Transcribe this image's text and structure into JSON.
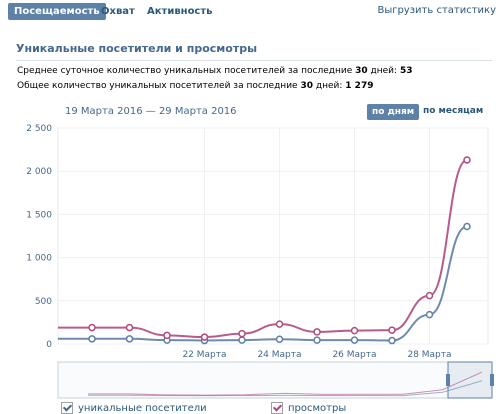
{
  "tabs": {
    "items": [
      {
        "label": "Посещаемость",
        "active": true
      },
      {
        "label": "Охват",
        "active": false
      },
      {
        "label": "Активность",
        "active": false
      }
    ],
    "export_label": "Выгрузить статистику"
  },
  "section": {
    "title": "Уникальные посетители и просмотры",
    "avg_prefix": "Среднее суточное количество уникальных посетителей за последние",
    "avg_days": "30",
    "avg_mid": "дней:",
    "avg_value": "53",
    "total_prefix": "Общее количество уникальных посетителей за последние",
    "total_days": "30",
    "total_mid": "дней:",
    "total_value": "1 279"
  },
  "controls": {
    "date_range": "19 Марта 2016 — 29 Марта 2016",
    "by_days": "по дням",
    "by_months": "по месяцам"
  },
  "legend": {
    "visitors": "уникальные посетители",
    "views": "просмотры"
  },
  "colors": {
    "visitors": "#5e7ea6",
    "views": "#b0487e",
    "accent": "#5e81a8",
    "link": "#2b587a"
  },
  "chart_data": {
    "type": "line",
    "x": [
      "19 Марта",
      "20 Марта",
      "21 Марта",
      "22 Марта",
      "23 Марта",
      "24 Марта",
      "25 Марта",
      "26 Марта",
      "27 Марта",
      "28 Марта",
      "29 Марта"
    ],
    "x_tick_labels": [
      "22 Марта",
      "24 Марта",
      "26 Марта",
      "28 Марта"
    ],
    "y_tick_labels": [
      "0",
      "500",
      "1 000",
      "1 500",
      "2 000",
      "2 500"
    ],
    "ylim": [
      0,
      2500
    ],
    "series": [
      {
        "name": "уникальные посетители",
        "values": [
          60,
          60,
          45,
          40,
          45,
          55,
          45,
          45,
          40,
          340,
          1360
        ]
      },
      {
        "name": "просмотры",
        "values": [
          190,
          190,
          100,
          80,
          120,
          230,
          140,
          155,
          160,
          560,
          2130
        ]
      }
    ],
    "grid": true
  }
}
